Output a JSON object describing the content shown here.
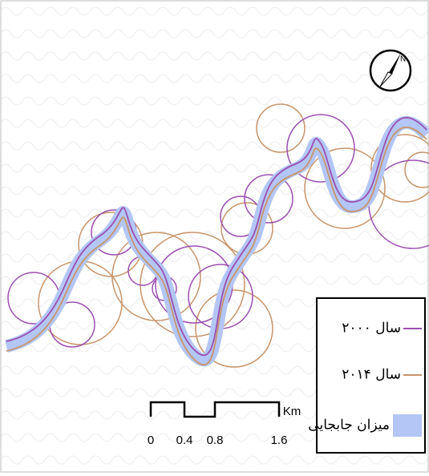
{
  "north_arrow": {
    "label": "N"
  },
  "legend": {
    "items": [
      {
        "label": "سال ۲۰۰۰"
      },
      {
        "label": "سال ۲۰۱۴"
      },
      {
        "label": "میزان جابجایی"
      }
    ]
  },
  "scale_bar": {
    "labels": [
      "0",
      "0.4",
      "0.8",
      "1.6"
    ],
    "unit": "Km"
  }
}
